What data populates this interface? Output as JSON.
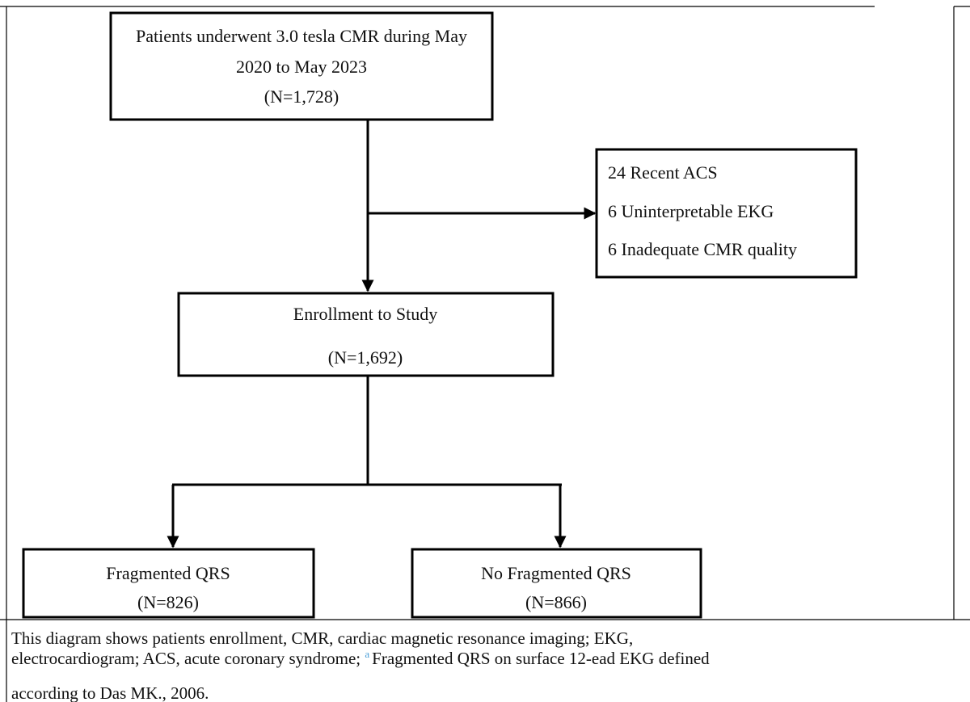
{
  "nodes": [
    {
      "lines": [
        "Patients underwent 3.0 tesla CMR during May",
        "2020 to May 2023",
        "(N=1,728)"
      ]
    },
    {
      "lines": [
        "24 Recent ACS",
        "6 Uninterpretable EKG",
        "6 Inadequate CMR quality"
      ]
    },
    {
      "lines": [
        "Enrollment to Study",
        "(N=1,692)"
      ]
    },
    {
      "lines": [
        "Fragmented QRS",
        "(N=826)"
      ]
    },
    {
      "lines": [
        "No Fragmented QRS",
        "(N=866)"
      ]
    }
  ],
  "caption": {
    "line1": "This diagram shows patients enrollment, CMR, cardiac magnetic resonance imaging; EKG,",
    "line2_start": "electrocardiogram; ACS, acute coronary syndrome;",
    "superscript": "a",
    "line2_end": "Fragmented QRS on surface 12-ead EKG defined",
    "line3": "according to Das MK., 2006."
  }
}
